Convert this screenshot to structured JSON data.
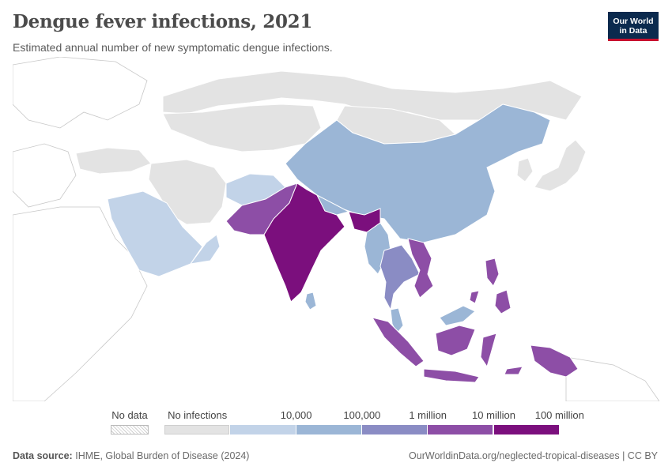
{
  "header": {
    "title": "Dengue fever infections, 2021",
    "subtitle": "Estimated annual number of new symptomatic dengue infections.",
    "logo_line1": "Our World",
    "logo_line2": "in Data"
  },
  "legend": {
    "no_data_label": "No data",
    "bins": [
      {
        "label": "No infections",
        "color": "#e3e3e3"
      },
      {
        "label": "10,000",
        "color": "#c2d3e8"
      },
      {
        "label": "100,000",
        "color": "#9bb6d6"
      },
      {
        "label": "1 million",
        "color": "#8a8cc4"
      },
      {
        "label": "10 million",
        "color": "#8d4ea6"
      },
      {
        "label": "100 million",
        "color": "#7b0f7d"
      }
    ]
  },
  "colors": {
    "none": "#e3e3e3",
    "low": "#c2d3e8",
    "mid": "#9bb6d6",
    "high": "#8a8cc4",
    "very_high": "#8d4ea6",
    "extreme": "#7b0f7d",
    "outline": "#ffffff",
    "background_land": "#ffffff"
  },
  "regions": [
    {
      "name": "Russia",
      "band": "none"
    },
    {
      "name": "Kazakhstan",
      "band": "none"
    },
    {
      "name": "Mongolia",
      "band": "none"
    },
    {
      "name": "Iran",
      "band": "none"
    },
    {
      "name": "Turkey",
      "band": "none"
    },
    {
      "name": "China",
      "band": "mid"
    },
    {
      "name": "Afghanistan",
      "band": "low"
    },
    {
      "name": "Saudi Arabia",
      "band": "low"
    },
    {
      "name": "Oman",
      "band": "low"
    },
    {
      "name": "Pakistan",
      "band": "very_high"
    },
    {
      "name": "India",
      "band": "extreme"
    },
    {
      "name": "Bangladesh",
      "band": "extreme"
    },
    {
      "name": "Nepal",
      "band": "mid"
    },
    {
      "name": "Sri Lanka",
      "band": "mid"
    },
    {
      "name": "Myanmar",
      "band": "mid"
    },
    {
      "name": "Thailand",
      "band": "high"
    },
    {
      "name": "Vietnam",
      "band": "very_high"
    },
    {
      "name": "Malaysia",
      "band": "mid"
    },
    {
      "name": "Indonesia",
      "band": "very_high"
    },
    {
      "name": "Philippines",
      "band": "very_high"
    },
    {
      "name": "Papua New Guinea",
      "band": "very_high"
    },
    {
      "name": "Japan",
      "band": "none"
    },
    {
      "name": "South Korea",
      "band": "none"
    }
  ],
  "footer": {
    "source_label": "Data source:",
    "source_text": "IHME, Global Burden of Disease (2024)",
    "url": "OurWorldinData.org/neglected-tropical-diseases | CC BY"
  }
}
